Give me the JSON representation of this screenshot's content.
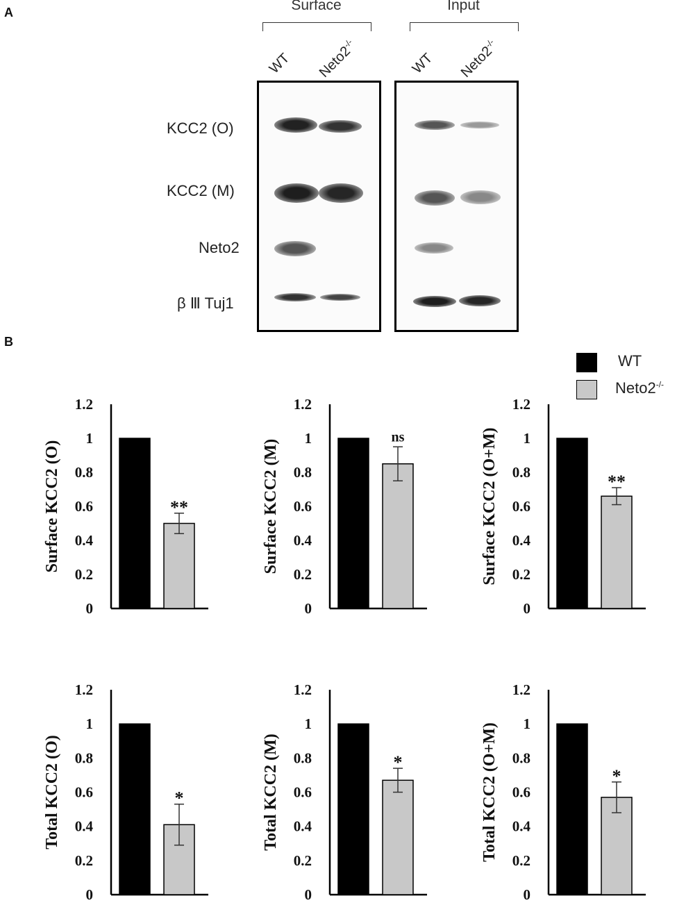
{
  "panels": {
    "a": "A",
    "b": "B"
  },
  "blot": {
    "groups": [
      {
        "label": "Surface",
        "lanes": [
          "WT",
          "Neto2"
        ]
      },
      {
        "label": "Input",
        "lanes": [
          "WT",
          "Neto2"
        ]
      }
    ],
    "lane_superscript": "-/-",
    "rows": [
      "KCC2 (O)",
      "KCC2 (M)",
      "Neto2",
      "β Ⅲ  Tuj1"
    ]
  },
  "legend": {
    "items": [
      {
        "label": "WT",
        "sup": "",
        "color": "#000000"
      },
      {
        "label": "Neto2",
        "sup": "-/-",
        "color": "#c8c8c8"
      }
    ]
  },
  "chart_data": [
    {
      "type": "bar",
      "categories": [
        "WT",
        "Neto2-/-"
      ],
      "values": [
        1.0,
        0.5
      ],
      "errors": [
        0.0,
        0.06
      ],
      "annotation": "**",
      "ylabel": "Surface KCC2 (O)",
      "ylim": [
        0,
        1.2
      ],
      "ticks": [
        "0",
        "0.2",
        "0.4",
        "0.6",
        "0.8",
        "1",
        "1.2"
      ]
    },
    {
      "type": "bar",
      "categories": [
        "WT",
        "Neto2-/-"
      ],
      "values": [
        1.0,
        0.85
      ],
      "errors": [
        0.0,
        0.1
      ],
      "annotation": "ns",
      "ylabel": "Surface KCC2 (M)",
      "ylim": [
        0,
        1.2
      ],
      "ticks": [
        "0",
        "0.2",
        "0.4",
        "0.6",
        "0.8",
        "1",
        "1.2"
      ]
    },
    {
      "type": "bar",
      "categories": [
        "WT",
        "Neto2-/-"
      ],
      "values": [
        1.0,
        0.66
      ],
      "errors": [
        0.0,
        0.05
      ],
      "annotation": "**",
      "ylabel": "Surface KCC2 (O+M)",
      "ylim": [
        0,
        1.2
      ],
      "ticks": [
        "0",
        "0.2",
        "0.4",
        "0.6",
        "0.8",
        "1",
        "1.2"
      ]
    },
    {
      "type": "bar",
      "categories": [
        "WT",
        "Neto2-/-"
      ],
      "values": [
        1.0,
        0.41
      ],
      "errors": [
        0.0,
        0.12
      ],
      "annotation": "*",
      "ylabel": "Total KCC2 (O)",
      "ylim": [
        0,
        1.2
      ],
      "ticks": [
        "0",
        "0.2",
        "0.4",
        "0.6",
        "0.8",
        "1",
        "1.2"
      ]
    },
    {
      "type": "bar",
      "categories": [
        "WT",
        "Neto2-/-"
      ],
      "values": [
        1.0,
        0.67
      ],
      "errors": [
        0.0,
        0.07
      ],
      "annotation": "*",
      "ylabel": "Total KCC2 (M)",
      "ylim": [
        0,
        1.2
      ],
      "ticks": [
        "0",
        "0.2",
        "0.4",
        "0.6",
        "0.8",
        "1",
        "1.2"
      ]
    },
    {
      "type": "bar",
      "categories": [
        "WT",
        "Neto2-/-"
      ],
      "values": [
        1.0,
        0.57
      ],
      "errors": [
        0.0,
        0.09
      ],
      "annotation": "*",
      "ylabel": "Total KCC2 (O+M)",
      "ylim": [
        0,
        1.2
      ],
      "ticks": [
        "0",
        "0.2",
        "0.4",
        "0.6",
        "0.8",
        "1",
        "1.2"
      ]
    }
  ]
}
